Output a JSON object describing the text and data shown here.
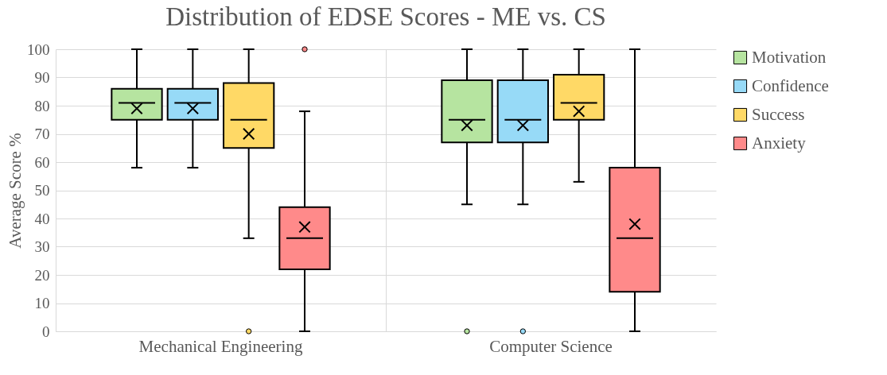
{
  "chart_data": {
    "type": "box",
    "title": "Distribution of EDSE Scores - ME vs. CS",
    "ylabel": "Average Score %",
    "categories": [
      "Mechanical Engineering",
      "Computer Science"
    ],
    "series": [
      {
        "name": "Motivation",
        "color": "#b6e4a0",
        "boxes": [
          {
            "low": 58,
            "q1": 75,
            "median": 81,
            "q3": 86,
            "high": 100,
            "mean": 79
          },
          {
            "low": 45,
            "q1": 67,
            "median": 75,
            "q3": 89,
            "high": 100,
            "mean": 73,
            "outliers": [
              0
            ]
          }
        ]
      },
      {
        "name": "Confidence",
        "color": "#97daf7",
        "boxes": [
          {
            "low": 58,
            "q1": 75,
            "median": 81,
            "q3": 86,
            "high": 100,
            "mean": 79
          },
          {
            "low": 45,
            "q1": 67,
            "median": 75,
            "q3": 89,
            "high": 100,
            "mean": 73,
            "outliers": [
              0
            ]
          }
        ]
      },
      {
        "name": "Success",
        "color": "#ffd966",
        "boxes": [
          {
            "low": 33,
            "q1": 65,
            "median": 75,
            "q3": 88,
            "high": 100,
            "mean": 70,
            "outliers": [
              0
            ]
          },
          {
            "low": 53,
            "q1": 75,
            "median": 81,
            "q3": 91,
            "high": 100,
            "mean": 78
          }
        ]
      },
      {
        "name": "Anxiety",
        "color": "#ff8a8a",
        "boxes": [
          {
            "low": 0,
            "q1": 22,
            "median": 33,
            "q3": 44,
            "high": 78,
            "mean": 37,
            "outliers": [
              100
            ]
          },
          {
            "low": 0,
            "q1": 14,
            "median": 33,
            "q3": 58,
            "high": 100,
            "mean": 38
          }
        ]
      }
    ],
    "ylim": [
      0,
      100
    ],
    "yticks": [
      0,
      10,
      20,
      30,
      40,
      50,
      60,
      70,
      80,
      90,
      100
    ],
    "grid": true,
    "legend": "right"
  }
}
